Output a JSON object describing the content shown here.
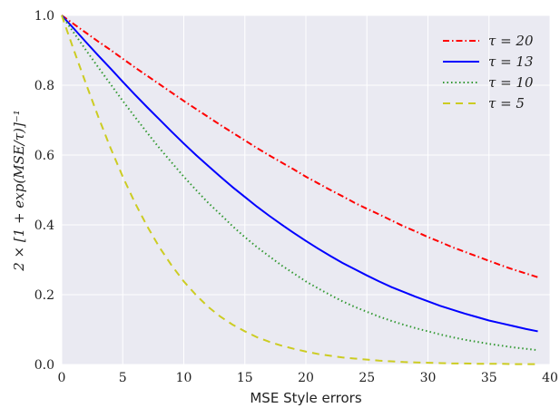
{
  "chart_data": {
    "type": "line",
    "title": "",
    "xlabel": "MSE Style errors",
    "ylabel": "2 × [1 + exp(MSE/τ)]⁻¹",
    "xlim": [
      0,
      40
    ],
    "ylim": [
      0.0,
      1.0
    ],
    "xticks": [
      "0",
      "5",
      "10",
      "15",
      "20",
      "25",
      "30",
      "35",
      "40"
    ],
    "yticks": [
      "0.0",
      "0.2",
      "0.4",
      "0.6",
      "0.8",
      "1.0"
    ],
    "grid": true,
    "legend_position": "top-right",
    "background": "#eaeaf2",
    "x": [
      0,
      1,
      2,
      3,
      4,
      5,
      6,
      7,
      8,
      9,
      10,
      11,
      12,
      13,
      14,
      15,
      16,
      17,
      18,
      19,
      20,
      21,
      22,
      23,
      24,
      25,
      26,
      27,
      28,
      29,
      30,
      31,
      32,
      33,
      34,
      35,
      36,
      37,
      38,
      39
    ],
    "series": [
      {
        "name": "τ = 20",
        "color": "#ff0000",
        "dash": "dashdot",
        "values": [
          1.0,
          0.975,
          0.95,
          0.925,
          0.901,
          0.876,
          0.851,
          0.827,
          0.803,
          0.779,
          0.755,
          0.732,
          0.709,
          0.686,
          0.664,
          0.642,
          0.62,
          0.599,
          0.579,
          0.559,
          0.538,
          0.519,
          0.5,
          0.482,
          0.463,
          0.446,
          0.43,
          0.413,
          0.396,
          0.381,
          0.365,
          0.351,
          0.336,
          0.323,
          0.31,
          0.297,
          0.284,
          0.272,
          0.261,
          0.25
        ]
      },
      {
        "name": "τ = 13",
        "color": "#0000ff",
        "dash": "solid",
        "values": [
          1.0,
          0.962,
          0.923,
          0.885,
          0.848,
          0.81,
          0.773,
          0.737,
          0.702,
          0.667,
          0.633,
          0.6,
          0.569,
          0.538,
          0.508,
          0.48,
          0.452,
          0.426,
          0.401,
          0.377,
          0.354,
          0.332,
          0.311,
          0.291,
          0.273,
          0.255,
          0.238,
          0.222,
          0.208,
          0.194,
          0.181,
          0.168,
          0.157,
          0.146,
          0.136,
          0.126,
          0.118,
          0.11,
          0.102,
          0.095
        ]
      },
      {
        "name": "τ = 10",
        "color": "#339933",
        "dash": "dotted",
        "values": [
          1.0,
          0.95,
          0.9,
          0.851,
          0.803,
          0.755,
          0.709,
          0.664,
          0.62,
          0.579,
          0.538,
          0.5,
          0.463,
          0.43,
          0.396,
          0.365,
          0.336,
          0.31,
          0.284,
          0.261,
          0.238,
          0.218,
          0.199,
          0.181,
          0.165,
          0.151,
          0.137,
          0.125,
          0.114,
          0.104,
          0.095,
          0.086,
          0.078,
          0.071,
          0.065,
          0.059,
          0.054,
          0.049,
          0.045,
          0.041
        ]
      },
      {
        "name": "τ = 5",
        "color": "#cccc22",
        "dash": "dashed",
        "values": [
          1.0,
          0.9,
          0.803,
          0.709,
          0.62,
          0.538,
          0.463,
          0.396,
          0.336,
          0.284,
          0.238,
          0.199,
          0.165,
          0.137,
          0.114,
          0.095,
          0.078,
          0.065,
          0.054,
          0.045,
          0.037,
          0.03,
          0.025,
          0.02,
          0.017,
          0.014,
          0.011,
          0.009,
          0.007,
          0.006,
          0.005,
          0.004,
          0.003,
          0.003,
          0.002,
          0.002,
          0.002,
          0.001,
          0.001,
          0.001
        ]
      }
    ]
  }
}
